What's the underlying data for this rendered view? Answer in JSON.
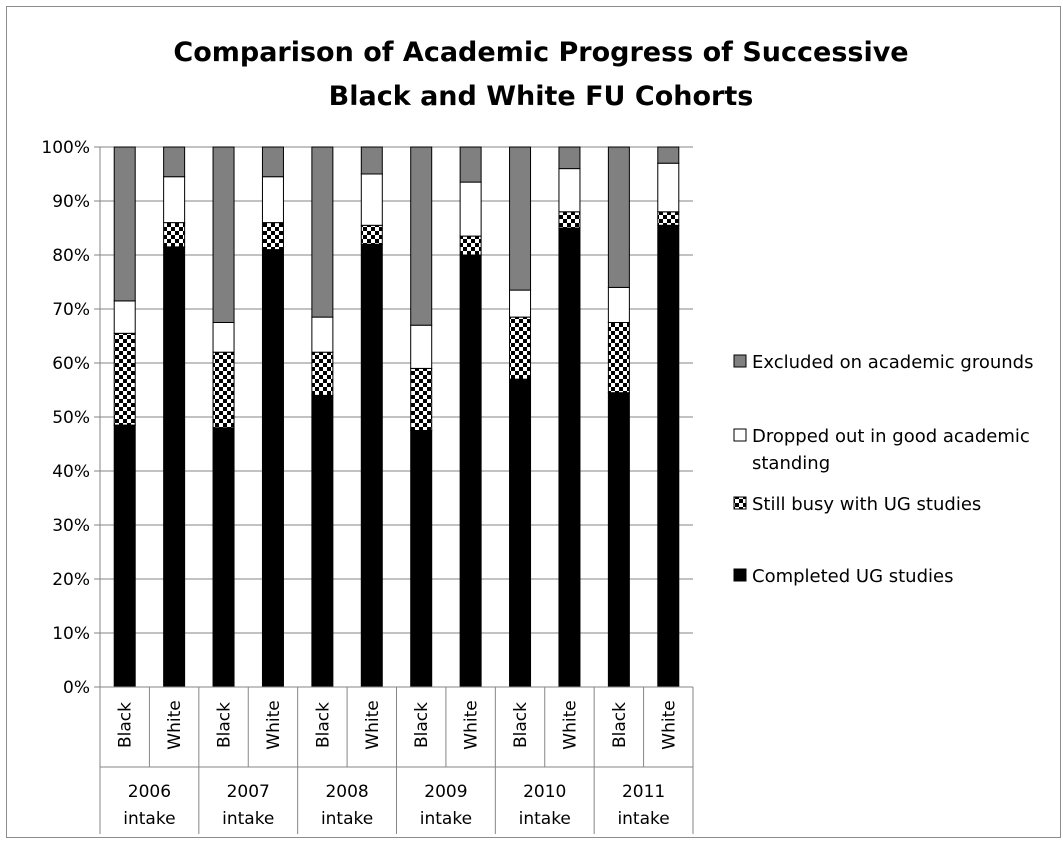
{
  "chart_data": {
    "type": "bar",
    "stacked": "percent",
    "title": "Comparison of Academic Progress of Successive Black and White FU Cohorts",
    "title_lines": [
      "Comparison of Academic Progress of Successive",
      "Black and White FU Cohorts"
    ],
    "categories": [
      "Black",
      "White",
      "Black",
      "White",
      "Black",
      "White",
      "Black",
      "White",
      "Black",
      "White",
      "Black",
      "White"
    ],
    "groups": [
      {
        "label_lines": [
          "2006",
          "intake"
        ]
      },
      {
        "label_lines": [
          "2007",
          "intake"
        ]
      },
      {
        "label_lines": [
          "2008",
          "intake"
        ]
      },
      {
        "label_lines": [
          "2009",
          "intake"
        ]
      },
      {
        "label_lines": [
          "2010",
          "intake"
        ]
      },
      {
        "label_lines": [
          "2011",
          "intake"
        ]
      }
    ],
    "series": [
      {
        "name": "Completed UG studies",
        "pattern": "solid-black",
        "values": [
          48.5,
          81.5,
          48.0,
          81.0,
          54.0,
          82.0,
          47.5,
          80.0,
          57.0,
          85.0,
          54.5,
          85.5
        ]
      },
      {
        "name": "Still busy with UG studies",
        "pattern": "checker",
        "values": [
          17.0,
          4.5,
          14.0,
          5.0,
          8.0,
          3.5,
          11.5,
          3.5,
          11.5,
          3.0,
          13.0,
          2.5
        ]
      },
      {
        "name": "Dropped out in good academic standing",
        "legend_lines": [
          "Dropped out in good academic",
          "standing"
        ],
        "pattern": "white",
        "values": [
          6.0,
          8.5,
          5.5,
          8.5,
          6.5,
          9.5,
          8.0,
          10.0,
          5.0,
          8.0,
          6.5,
          9.0
        ]
      },
      {
        "name": "Excluded on academic grounds",
        "pattern": "gray",
        "values": [
          28.5,
          5.5,
          32.5,
          5.5,
          31.5,
          5.0,
          33.0,
          6.5,
          26.5,
          4.0,
          26.0,
          3.0
        ]
      }
    ],
    "legend_order": [
      3,
      2,
      1,
      0
    ],
    "legend_position": "right",
    "y_ticks": [
      "0%",
      "10%",
      "20%",
      "30%",
      "40%",
      "50%",
      "60%",
      "70%",
      "80%",
      "90%",
      "100%"
    ],
    "ylim": [
      0,
      100
    ],
    "xlabel": "",
    "ylabel": "",
    "grid": true,
    "colors": {
      "completed": "#000000",
      "excluded": "#808080",
      "dropped": "#ffffff",
      "checker_dark": "#000000",
      "checker_light": "#ffffff",
      "axis": "#868686",
      "grid": "#868686",
      "bar_edge": "#000000"
    }
  }
}
